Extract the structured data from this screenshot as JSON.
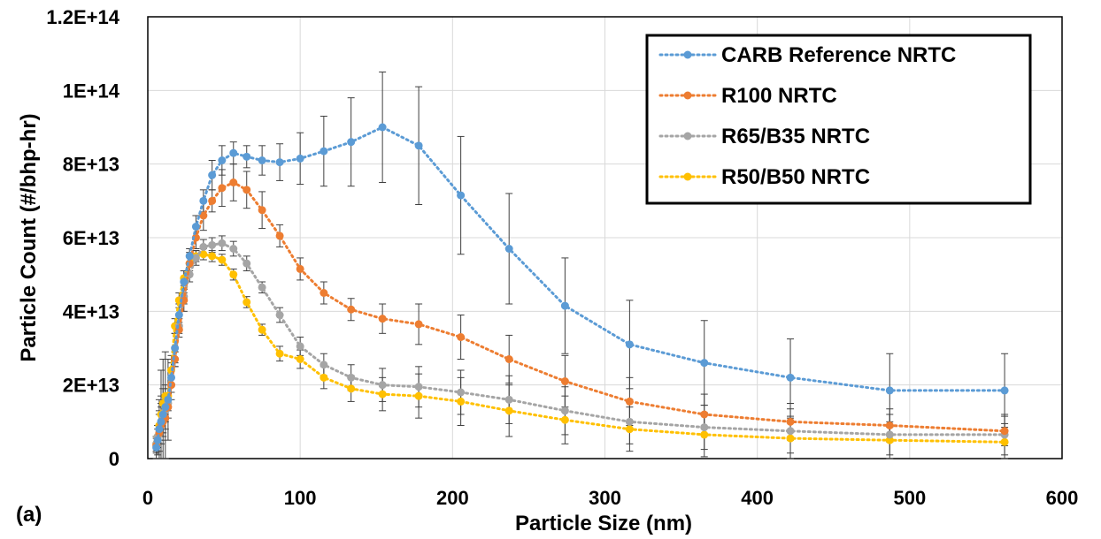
{
  "panel_label": "(a)",
  "chart_data": {
    "type": "line",
    "xlabel": "Particle Size (nm)",
    "ylabel": "Particle Count (#/bhp-hr)",
    "xlim": [
      0,
      600
    ],
    "ylim": [
      0,
      120000000000000.0
    ],
    "x_ticks": [
      0,
      100,
      200,
      300,
      400,
      500,
      600
    ],
    "y_ticks": [
      0,
      20000000000000.0,
      40000000000000.0,
      60000000000000.0,
      80000000000000.0,
      100000000000000.0,
      120000000000000.0
    ],
    "x_tick_labels": [
      "0",
      "100",
      "200",
      "300",
      "400",
      "500",
      "600"
    ],
    "y_tick_labels": [
      "0",
      "2E+13",
      "4E+13",
      "6E+13",
      "8E+13",
      "1E+14",
      "1.2E+14"
    ],
    "grid": true,
    "legend_position": "top-right",
    "line_style": "dotted",
    "x": [
      5.6,
      6.5,
      7.5,
      8.7,
      10.0,
      11.5,
      13.3,
      15.4,
      17.8,
      20.5,
      23.7,
      27.4,
      31.6,
      36.5,
      42.2,
      48.7,
      56.2,
      64.9,
      75.0,
      86.6,
      100.0,
      115.5,
      133.4,
      154.0,
      177.8,
      205.4,
      237.1,
      273.8,
      316.2,
      365.2,
      421.7,
      486.9,
      562.3
    ],
    "series": [
      {
        "name": "CARB Reference NRTC",
        "color": "#5B9BD5",
        "values": [
          3000000000000.0,
          5000000000000.0,
          8000000000000.0,
          10000000000000.0,
          12000000000000.0,
          14000000000000.0,
          16000000000000.0,
          22000000000000.0,
          30000000000000.0,
          39000000000000.0,
          48000000000000.0,
          55000000000000.0,
          63000000000000.0,
          70000000000000.0,
          77000000000000.0,
          81000000000000.0,
          83000000000000.0,
          82000000000000.0,
          81000000000000.0,
          80500000000000.0,
          81500000000000.0,
          83500000000000.0,
          86000000000000.0,
          90000000000000.0,
          85000000000000.0,
          71500000000000.0,
          57000000000000.0,
          41500000000000.0,
          31000000000000.0,
          26000000000000.0,
          22000000000000.0,
          18500000000000.0,
          18500000000000.0
        ],
        "errors": [
          3000000000000.0,
          4000000000000.0,
          8000000000000.0,
          14000000000000.0,
          15000000000000.0,
          15000000000000.0,
          11000000000000.0,
          6000000000000.0,
          4000000000000.0,
          3000000000000.0,
          3000000000000.0,
          2000000000000.0,
          3000000000000.0,
          3000000000000.0,
          4000000000000.0,
          4000000000000.0,
          3000000000000.0,
          3000000000000.0,
          4000000000000.0,
          5000000000000.0,
          7000000000000.0,
          9500000000000.0,
          12000000000000.0,
          15000000000000.0,
          16000000000000.0,
          16000000000000.0,
          15000000000000.0,
          13000000000000.0,
          12000000000000.0,
          11500000000000.0,
          10500000000000.0,
          10000000000000.0,
          10000000000000.0
        ]
      },
      {
        "name": "R100 NRTC",
        "color": "#ED7D31",
        "values": [
          3500000000000.0,
          5000000000000.0,
          7000000000000.0,
          9000000000000.0,
          10000000000000.0,
          11000000000000.0,
          14000000000000.0,
          20000000000000.0,
          27000000000000.0,
          35000000000000.0,
          43000000000000.0,
          53000000000000.0,
          60000000000000.0,
          66000000000000.0,
          70000000000000.0,
          73500000000000.0,
          75000000000000.0,
          73000000000000.0,
          67500000000000.0,
          60500000000000.0,
          51500000000000.0,
          45000000000000.0,
          40500000000000.0,
          38000000000000.0,
          36500000000000.0,
          33000000000000.0,
          27000000000000.0,
          21000000000000.0,
          15500000000000.0,
          12000000000000.0,
          10000000000000.0,
          9000000000000.0,
          7500000000000.0
        ],
        "errors": [
          2000000000000.0,
          3000000000000.0,
          5000000000000.0,
          5000000000000.0,
          4000000000000.0,
          3000000000000.0,
          3000000000000.0,
          2000000000000.0,
          2000000000000.0,
          2000000000000.0,
          3000000000000.0,
          3000000000000.0,
          3000000000000.0,
          4000000000000.0,
          3000000000000.0,
          5000000000000.0,
          5000000000000.0,
          5000000000000.0,
          5000000000000.0,
          3000000000000.0,
          3000000000000.0,
          3000000000000.0,
          3000000000000.0,
          4000000000000.0,
          5500000000000.0,
          6000000000000.0,
          6500000000000.0,
          7000000000000.0,
          6500000000000.0,
          5500000000000.0,
          5000000000000.0,
          4500000000000.0,
          4000000000000.0
        ]
      },
      {
        "name": "R65/B35 NRTC",
        "color": "#A5A5A5",
        "values": [
          4000000000000.0,
          6000000000000.0,
          8000000000000.0,
          10000000000000.0,
          11000000000000.0,
          13000000000000.0,
          15000000000000.0,
          20000000000000.0,
          27000000000000.0,
          36000000000000.0,
          44000000000000.0,
          50000000000000.0,
          54500000000000.0,
          57500000000000.0,
          58000000000000.0,
          58500000000000.0,
          57000000000000.0,
          53000000000000.0,
          46500000000000.0,
          39000000000000.0,
          30500000000000.0,
          25500000000000.0,
          22000000000000.0,
          20000000000000.0,
          19500000000000.0,
          18000000000000.0,
          16000000000000.0,
          13000000000000.0,
          10000000000000.0,
          8500000000000.0,
          7500000000000.0,
          6500000000000.0,
          6500000000000.0
        ],
        "errors": [
          2000000000000.0,
          3000000000000.0,
          4000000000000.0,
          5000000000000.0,
          4000000000000.0,
          3000000000000.0,
          2000000000000.0,
          2000000000000.0,
          2000000000000.0,
          2000000000000.0,
          2000000000000.0,
          2000000000000.0,
          2000000000000.0,
          2000000000000.0,
          2000000000000.0,
          2000000000000.0,
          2000000000000.0,
          2000000000000.0,
          1500000000000.0,
          2000000000000.0,
          2500000000000.0,
          3000000000000.0,
          3500000000000.0,
          4500000000000.0,
          5500000000000.0,
          6000000000000.0,
          6500000000000.0,
          6500000000000.0,
          6000000000000.0,
          6000000000000.0,
          6000000000000.0,
          5500000000000.0,
          5500000000000.0
        ]
      },
      {
        "name": "R50/B50 NRTC",
        "color": "#FFC000",
        "values": [
          4000000000000.0,
          6000000000000.0,
          9000000000000.0,
          12000000000000.0,
          15000000000000.0,
          17000000000000.0,
          17000000000000.0,
          24000000000000.0,
          36000000000000.0,
          43000000000000.0,
          49000000000000.0,
          53000000000000.0,
          55000000000000.0,
          55500000000000.0,
          55000000000000.0,
          54000000000000.0,
          50000000000000.0,
          42500000000000.0,
          35000000000000.0,
          28500000000000.0,
          27000000000000.0,
          22000000000000.0,
          19000000000000.0,
          17500000000000.0,
          17000000000000.0,
          15500000000000.0,
          13000000000000.0,
          10500000000000.0,
          8000000000000.0,
          6500000000000.0,
          5500000000000.0,
          5000000000000.0,
          4500000000000.0
        ],
        "errors": [
          2000000000000.0,
          3000000000000.0,
          4000000000000.0,
          5000000000000.0,
          4000000000000.0,
          3000000000000.0,
          2000000000000.0,
          2000000000000.0,
          2000000000000.0,
          2000000000000.0,
          2000000000000.0,
          2000000000000.0,
          1500000000000.0,
          1500000000000.0,
          1500000000000.0,
          1500000000000.0,
          1500000000000.0,
          1500000000000.0,
          1500000000000.0,
          2000000000000.0,
          2500000000000.0,
          3000000000000.0,
          3500000000000.0,
          4500000000000.0,
          6000000000000.0,
          6500000000000.0,
          7000000000000.0,
          6500000000000.0,
          6000000000000.0,
          6000000000000.0,
          5500000000000.0,
          5000000000000.0,
          5000000000000.0
        ]
      }
    ]
  }
}
